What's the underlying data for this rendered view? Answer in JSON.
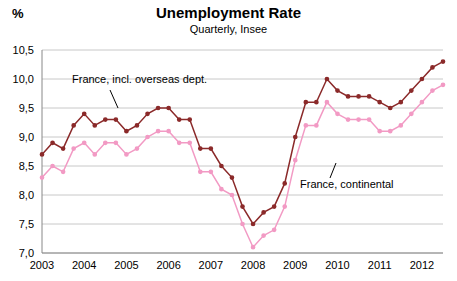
{
  "chart_data": {
    "type": "line",
    "title": "Unemployment Rate",
    "subtitle": "Quarterly, Insee",
    "y_label": "%",
    "categories": [
      "2003",
      null,
      null,
      null,
      "2004",
      null,
      null,
      null,
      "2005",
      null,
      null,
      null,
      "2006",
      null,
      null,
      null,
      "2007",
      null,
      null,
      null,
      "2008",
      null,
      null,
      null,
      "2009",
      null,
      null,
      null,
      "2010",
      null,
      null,
      null,
      "2011",
      null,
      null,
      null,
      "2012",
      null,
      null
    ],
    "series": [
      {
        "name": "France, incl. overseas dept.",
        "color": "#8b2a2a",
        "marker": "circle",
        "values": [
          8.7,
          8.9,
          8.8,
          9.2,
          9.4,
          9.2,
          9.3,
          9.3,
          9.1,
          9.2,
          9.4,
          9.5,
          9.5,
          9.3,
          9.3,
          8.8,
          8.8,
          8.5,
          8.3,
          7.8,
          7.5,
          7.7,
          7.8,
          8.2,
          9.0,
          9.6,
          9.6,
          10.0,
          9.8,
          9.7,
          9.7,
          9.7,
          9.6,
          9.5,
          9.6,
          9.8,
          10.0,
          10.2,
          10.3
        ]
      },
      {
        "name": "France, continental",
        "color": "#f29ac4",
        "marker": "circle",
        "values": [
          8.3,
          8.5,
          8.4,
          8.8,
          8.9,
          8.7,
          8.9,
          8.9,
          8.7,
          8.8,
          9.0,
          9.1,
          9.1,
          8.9,
          8.9,
          8.4,
          8.4,
          8.1,
          8.0,
          7.5,
          7.1,
          7.3,
          7.4,
          7.8,
          8.6,
          9.2,
          9.2,
          9.6,
          9.4,
          9.3,
          9.3,
          9.3,
          9.1,
          9.1,
          9.2,
          9.4,
          9.6,
          9.8,
          9.9
        ]
      }
    ],
    "ylim": [
      7.0,
      10.5
    ],
    "yticks": [
      {
        "value": 7.0,
        "label": "7,0"
      },
      {
        "value": 7.5,
        "label": "7,5"
      },
      {
        "value": 8.0,
        "label": "8,0"
      },
      {
        "value": 8.5,
        "label": "8,5"
      },
      {
        "value": 9.0,
        "label": "9,0"
      },
      {
        "value": 9.5,
        "label": "9,5"
      },
      {
        "value": 10.0,
        "label": "10,0"
      },
      {
        "value": 10.5,
        "label": "10,5"
      }
    ],
    "grid": true
  }
}
